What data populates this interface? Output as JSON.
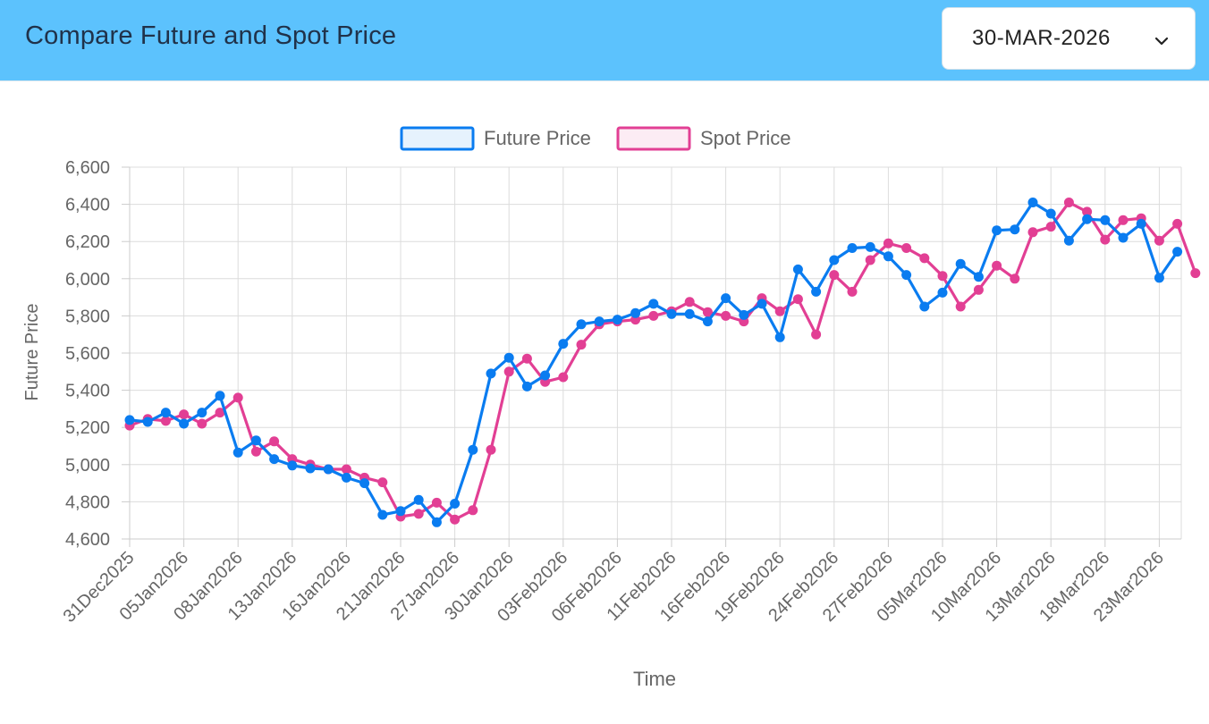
{
  "header": {
    "title": "Compare Future and Spot Price",
    "date_select": {
      "value": "30-MAR-2026",
      "icon": "chevron-down-icon"
    }
  },
  "colors": {
    "header_bg": "#5cc2fd",
    "future": "#0a7cf0",
    "spot": "#e23f94",
    "grid": "#dcdcdc"
  },
  "chart_data": {
    "type": "line",
    "title": "",
    "xlabel": "Time",
    "ylabel": "Future Price",
    "ylim": [
      4600,
      6600
    ],
    "yticks": [
      "4,600",
      "4,800",
      "5,000",
      "5,200",
      "5,400",
      "5,600",
      "5,800",
      "6,000",
      "6,200",
      "6,400",
      "6,600"
    ],
    "grid": true,
    "legend": "top-center",
    "x_ticks": [
      "31Dec2025",
      "05Jan2026",
      "08Jan2026",
      "13Jan2026",
      "16Jan2026",
      "21Jan2026",
      "27Jan2026",
      "30Jan2026",
      "03Feb2026",
      "06Feb2026",
      "11Feb2026",
      "16Feb2026",
      "19Feb2026",
      "24Feb2026",
      "27Feb2026",
      "05Mar2026",
      "10Mar2026",
      "13Mar2026",
      "18Mar2026",
      "23Mar2026"
    ],
    "series": [
      {
        "name": "Future Price",
        "values": [
          5240,
          5230,
          5280,
          5220,
          5280,
          5370,
          5065,
          5130,
          5030,
          4995,
          4980,
          4975,
          4930,
          4900,
          4730,
          4750,
          4810,
          4690,
          4790,
          5080,
          5490,
          5575,
          5420,
          5480,
          5650,
          5755,
          5770,
          5780,
          5815,
          5865,
          5810,
          5810,
          5770,
          5895,
          5805,
          5865,
          5685,
          6050,
          5930,
          6100,
          6165,
          6170,
          6120,
          6020,
          5850,
          5925,
          6080,
          6010,
          6260,
          6265,
          6410,
          6350,
          6205,
          6320,
          6315,
          6220,
          6295,
          6005,
          6145
        ]
      },
      {
        "name": "Spot Price",
        "values": [
          5210,
          5245,
          5235,
          5270,
          5220,
          5280,
          5360,
          5070,
          5125,
          5030,
          5000,
          4975,
          4975,
          4930,
          4905,
          4720,
          4735,
          4795,
          4705,
          4755,
          5080,
          5500,
          5570,
          5445,
          5470,
          5645,
          5755,
          5770,
          5780,
          5800,
          5825,
          5875,
          5820,
          5800,
          5770,
          5895,
          5825,
          5890,
          5700,
          6020,
          5930,
          6100,
          6190,
          6165,
          6110,
          6015,
          5850,
          5940,
          6070,
          6000,
          6250,
          6280,
          6410,
          6360,
          6210,
          6315,
          6325,
          6205,
          6295,
          6030
        ]
      }
    ]
  }
}
